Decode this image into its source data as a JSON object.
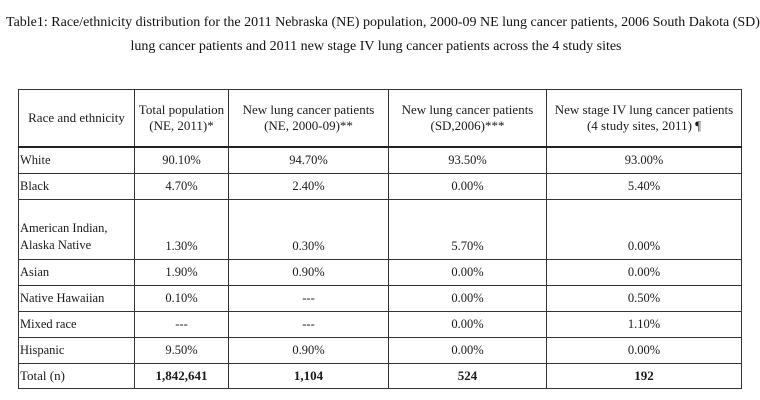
{
  "caption": {
    "line1": "Table1: Race/ethnicity distribution for the 2011 Nebraska (NE) population, 2000-09 NE lung cancer patients, 2006 South Dakota (SD)",
    "line2": "lung cancer patients and 2011 new stage IV lung cancer patients across the 4 study sites"
  },
  "table": {
    "headers": [
      {
        "line1": "Race and ethnicity",
        "line2": ""
      },
      {
        "line1": "Total population",
        "line2": "(NE, 2011)*"
      },
      {
        "line1": "New lung cancer patients",
        "line2": "(NE, 2000-09)**"
      },
      {
        "line1": "New lung cancer patients",
        "line2": "(SD,2006)***"
      },
      {
        "line1": "New stage IV lung cancer patients",
        "line2": "(4 study sites, 2011) ¶"
      }
    ],
    "rows": [
      {
        "label": "White",
        "label2": "",
        "cells": [
          "90.10%",
          "94.70%",
          "93.50%",
          "93.00%"
        ]
      },
      {
        "label": "Black",
        "label2": "",
        "cells": [
          "4.70%",
          "2.40%",
          "0.00%",
          "5.40%"
        ]
      },
      {
        "label": "American Indian,",
        "label2": "Alaska Native",
        "cells": [
          "1.30%",
          "0.30%",
          "5.70%",
          "0.00%"
        ]
      },
      {
        "label": "Asian",
        "label2": "",
        "cells": [
          "1.90%",
          "0.90%",
          "0.00%",
          "0.00%"
        ]
      },
      {
        "label": "Native Hawaiian",
        "label2": "",
        "cells": [
          "0.10%",
          "---",
          "0.00%",
          "0.50%"
        ]
      },
      {
        "label": "Mixed race",
        "label2": "",
        "cells": [
          "---",
          "---",
          "0.00%",
          "1.10%"
        ]
      },
      {
        "label": "Hispanic",
        "label2": "",
        "cells": [
          "9.50%",
          "0.90%",
          "0.00%",
          "0.00%"
        ]
      }
    ],
    "total": {
      "label": "Total (n)",
      "cells": [
        "1,842,641",
        "1,104",
        "524",
        "192"
      ]
    }
  }
}
